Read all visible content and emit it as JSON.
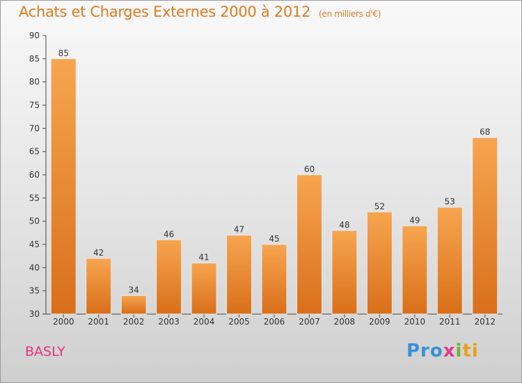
{
  "header": {
    "title": "Achats et Charges Externes 2000 à 2012",
    "unit": "(en milliers d'€)"
  },
  "footer": {
    "town": "BASLY",
    "logo": [
      "Pro",
      "x",
      "i",
      "ti"
    ]
  },
  "colors": {
    "bar_light": "#f7a550",
    "bar_dark": "#d96f1a",
    "title": "#e07a1e",
    "town": "#e8307c"
  },
  "chart_data": {
    "type": "bar",
    "title": "Achats et Charges Externes 2000 à 2012",
    "subtitle": "(en milliers d'€)",
    "xlabel": "",
    "ylabel": "",
    "categories": [
      "2000",
      "2001",
      "2002",
      "2003",
      "2004",
      "2005",
      "2006",
      "2007",
      "2008",
      "2009",
      "2010",
      "2011",
      "2012"
    ],
    "values": [
      85,
      42,
      34,
      46,
      41,
      47,
      45,
      60,
      48,
      52,
      49,
      53,
      68
    ],
    "ylim": [
      30,
      90
    ],
    "yticks": [
      30,
      35,
      40,
      45,
      50,
      55,
      60,
      65,
      70,
      75,
      80,
      85,
      90
    ],
    "grid": false,
    "data_labels": true
  }
}
